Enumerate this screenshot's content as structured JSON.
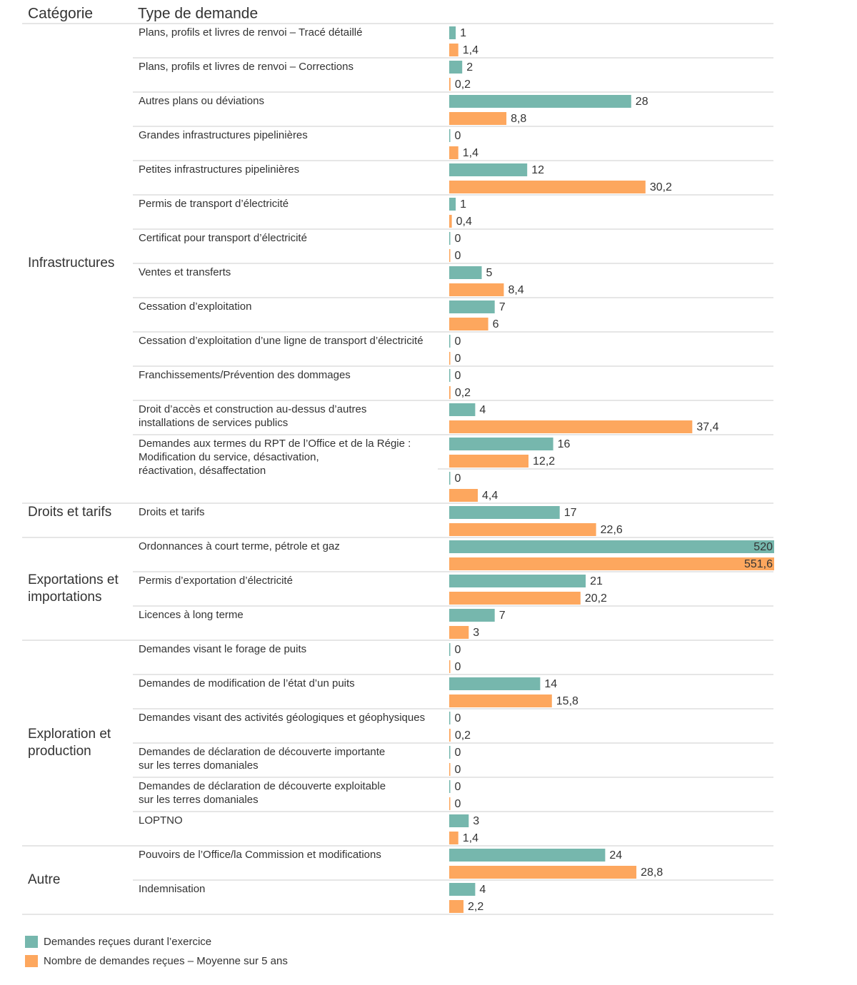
{
  "chart_data": {
    "type": "bar",
    "orientation": "horizontal",
    "column_headers": [
      "Catégorie",
      "Type de demande"
    ],
    "groups": [
      {
        "name": "Infrastructures",
        "categories": [
          "Plans, profils et livres de renvoi – Tracé détaillé",
          "Plans, profils et livres de renvoi – Corrections",
          "Autres plans ou déviations",
          "Grandes infrastructures pipelinières",
          "Petites infrastructures pipelinières",
          "Permis de transport d’électricité",
          "Certificat pour transport d’électricité",
          "Ventes et transferts",
          "Cessation d’exploitation",
          "Cessation d’exploitation d’une ligne de transport d’électricité",
          "Franchissements/Prévention des dommages",
          [
            "Droit d’accès et construction au-dessus d’autres",
            "installations de services publics"
          ],
          [
            "Demandes aux termes du RPT de l’Office et de la Régie :",
            "Modification du service, désactivation,",
            "réactivation, désaffectation"
          ],
          null
        ]
      },
      {
        "name": "Droits et tarifs",
        "categories": [
          "Droits et tarifs"
        ]
      },
      {
        "name": [
          "Exportations et",
          "importations"
        ],
        "categories": [
          "Ordonnances à court terme, pétrole et gaz",
          "Permis d’exportation d’électricité",
          "Licences à long terme"
        ]
      },
      {
        "name": [
          "Exploration et",
          "production"
        ],
        "categories": [
          "Demandes visant le forage de puits",
          "Demandes de modification de l’état d’un puits",
          "Demandes visant des activités géologiques et géophysiques",
          [
            "Demandes de déclaration de découverte importante",
            "sur les terres domaniales"
          ],
          [
            "Demandes de déclaration de découverte exploitable",
            "sur les terres domaniales"
          ],
          "LOPTNO"
        ]
      },
      {
        "name": "Autre",
        "categories": [
          "Pouvoirs de l’Office/la Commission et modifications",
          "Indemnisation"
        ]
      }
    ],
    "series": [
      {
        "name": "Demandes reçues durant l’exercice",
        "color": "#76b7ad",
        "values": [
          [
            1,
            2,
            28,
            0,
            12,
            1,
            0,
            5,
            7,
            0,
            0,
            4,
            16,
            0
          ],
          [
            17
          ],
          [
            520,
            21,
            7
          ],
          [
            0,
            14,
            0,
            0,
            0,
            3
          ],
          [
            24,
            4
          ]
        ]
      },
      {
        "name": "Nombre de demandes reçues – Moyenne sur 5 ans",
        "color": "#fda75e",
        "values": [
          [
            1.4,
            0.2,
            8.8,
            1.4,
            30.2,
            0.4,
            0,
            8.4,
            6,
            0,
            0.2,
            37.4,
            12.2,
            4.4
          ],
          [
            22.6
          ],
          [
            551.6,
            20.2,
            3
          ],
          [
            0,
            15.8,
            0.2,
            0,
            0,
            1.4
          ],
          [
            28.8,
            2.2
          ]
        ],
        "value_labels": [
          [
            "1,4",
            "0,2",
            "8,8",
            "1,4",
            "30,2",
            "0,4",
            "0",
            "8,4",
            "6",
            "0",
            "0,2",
            "37,4",
            "12,2",
            "4,4"
          ],
          [
            "22,6"
          ],
          [
            "551,6",
            "20,2",
            "3"
          ],
          [
            "0",
            "15,8",
            "0,2",
            "0",
            "0",
            "1,4"
          ],
          [
            "28,8",
            "2,2"
          ]
        ]
      }
    ],
    "xlim": [
      0,
      50
    ]
  }
}
